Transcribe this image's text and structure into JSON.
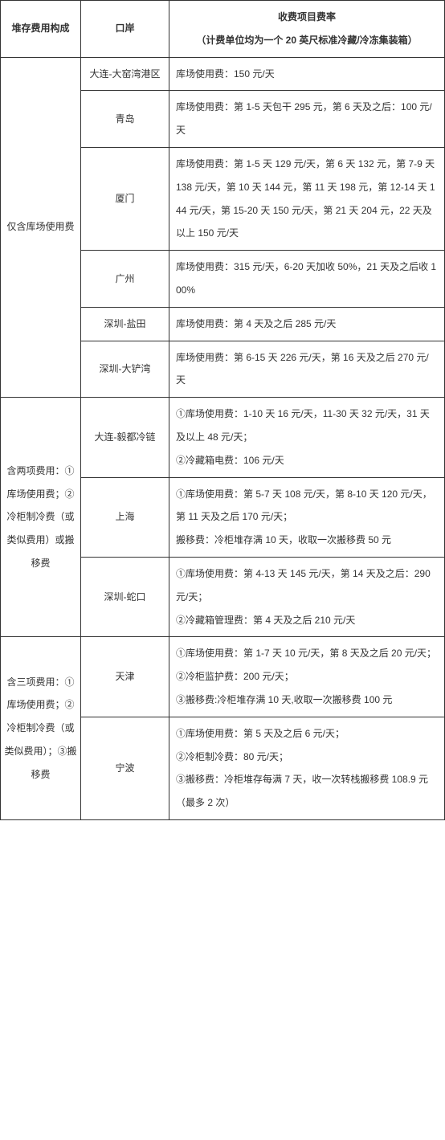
{
  "header": {
    "col1": "堆存费用构成",
    "col2": "口岸",
    "col3_line1": "收费项目费率",
    "col3_line2": "（计费单位均为一个 20 英尺标准冷藏/冷冻集装箱）"
  },
  "groups": [
    {
      "label": "仅含库场使用费",
      "rows": [
        {
          "port": "大连-大窑湾港区",
          "rate": "库场使用费：150 元/天"
        },
        {
          "port": "青岛",
          "rate": "库场使用费：第 1-5 天包干 295 元，第 6 天及之后：100 元/天"
        },
        {
          "port": "厦门",
          "rate": "库场使用费：第 1-5 天 129 元/天，第 6 天 132 元，第 7-9 天 138 元/天，第 10 天 144 元，第 11 天 198 元，第 12-14 天 144 元/天，第 15-20 天 150 元/天，第 21 天 204 元，22 天及以上 150 元/天"
        },
        {
          "port": "广州",
          "rate": "库场使用费：315 元/天，6-20 天加收 50%，21 天及之后收 100%"
        },
        {
          "port": "深圳-盐田",
          "rate": "库场使用费：第 4 天及之后 285 元/天"
        },
        {
          "port": "深圳-大铲湾",
          "rate": "库场使用费：第 6-15 天 226 元/天，第 16 天及之后 270 元/天"
        }
      ]
    },
    {
      "label": "含两项费用：①库场使用费；②冷柜制冷费（或类似费用）或搬移费",
      "rows": [
        {
          "port": "大连-毅都冷链",
          "rate": "①库场使用费：1-10 天 16 元/天，11-30 天 32 元/天，31 天及以上 48 元/天；\n②冷藏箱电费：106 元/天"
        },
        {
          "port": "上海",
          "rate": "①库场使用费：第 5-7 天 108 元/天，第 8-10 天 120 元/天，第 11 天及之后 170 元/天；\n搬移费：冷柜堆存满 10 天，收取一次搬移费 50 元"
        },
        {
          "port": "深圳-蛇口",
          "rate": "①库场使用费：第 4-13 天 145 元/天，第 14 天及之后：290 元/天；\n②冷藏箱管理费：第 4 天及之后 210 元/天"
        }
      ]
    },
    {
      "label": "含三项费用：①库场使用费；②冷柜制冷费（或类似费用）；③搬移费",
      "rows": [
        {
          "port": "天津",
          "rate": "①库场使用费：第 1-7 天 10 元/天，第 8 天及之后 20 元/天；\n②冷柜监护费：200 元/天；\n③搬移费:冷柜堆存满 10 天,收取一次搬移费 100 元"
        },
        {
          "port": "宁波",
          "rate": "①库场使用费：第 5 天及之后 6 元/天；\n②冷柜制冷费：80 元/天；\n③搬移费：冷柜堆存每满 7 天，收一次转栈搬移费 108.9 元（最多 2 次）"
        }
      ]
    }
  ]
}
